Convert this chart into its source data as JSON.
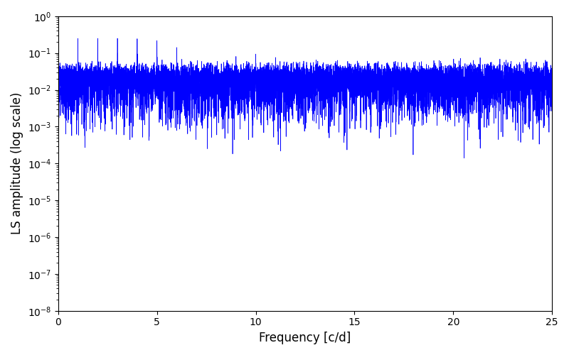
{
  "xlabel": "Frequency [c/d]",
  "ylabel": "LS amplitude (log scale)",
  "xlim": [
    0,
    25
  ],
  "ylim": [
    1e-08,
    1.0
  ],
  "line_color": "#0000ff",
  "line_width": 0.5,
  "figsize": [
    8.0,
    5.0
  ],
  "dpi": 100,
  "freq_max": 25.0,
  "n_points": 60000,
  "seed": 7777
}
